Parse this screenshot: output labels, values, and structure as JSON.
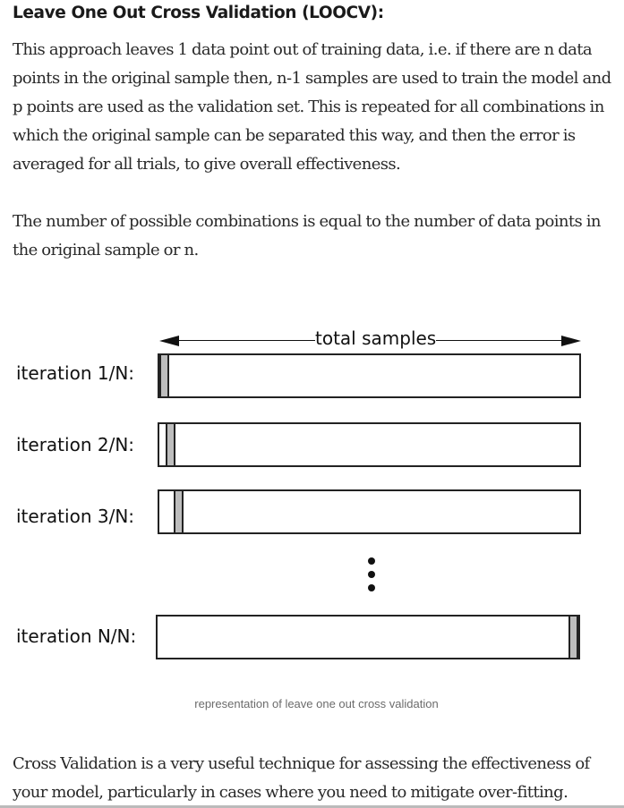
{
  "heading": "Leave One Out Cross Validation (LOOCV):",
  "paragraphs": [
    "This approach leaves 1 data point out of training data, i.e. if there are n data points in the original sample then, n-1 samples are used to train the model and p points are used as the validation set. This is repeated for all combinations in which the original sample can be separated this way, and then the error is averaged for all trials, to give overall effectiveness.",
    "The number of possible combinations is equal to the number of data points in the original sample or n.",
    "Cross Validation is a very useful technique for assessing the effectiveness of your model, particularly in cases where you need to mitigate over-fitting."
  ],
  "figure": {
    "arrow_label": "total samples",
    "iterations": [
      {
        "label": "iteration 1/N:"
      },
      {
        "label": "iteration 2/N:"
      },
      {
        "label": "iteration 3/N:"
      },
      {
        "label": "iteration N/N:"
      }
    ],
    "caption": "representation of leave one out cross validation",
    "colors": {
      "held_out_cell": "#bdbdbd",
      "outline": "#222222"
    }
  }
}
